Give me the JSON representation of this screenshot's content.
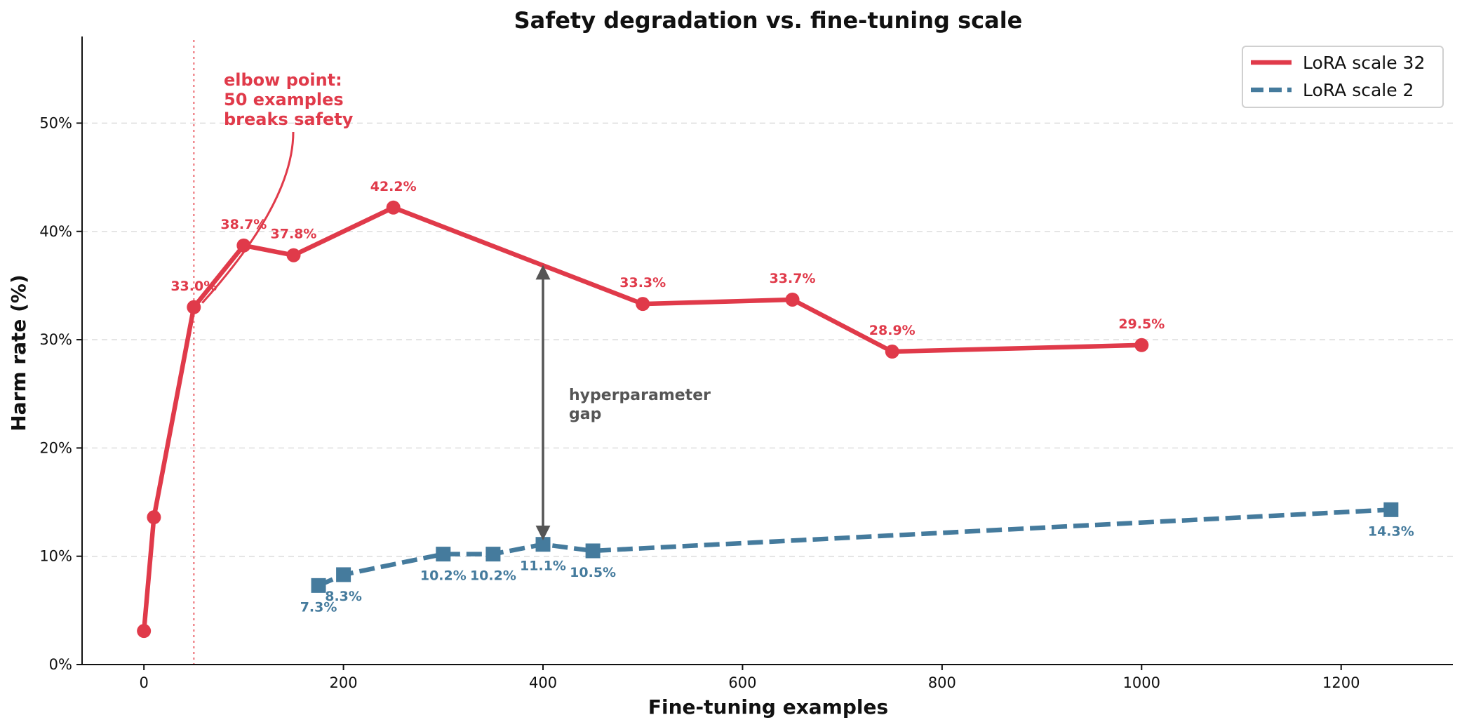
{
  "chart_data": {
    "type": "line",
    "title": "Safety degradation vs. fine-tuning scale",
    "xlabel": "Fine-tuning examples",
    "ylabel": "Harm rate (%)",
    "xlim": [
      -62,
      1312
    ],
    "ylim": [
      0,
      58
    ],
    "x_ticks": [
      0,
      200,
      400,
      600,
      800,
      1000,
      1200
    ],
    "x_tick_labels": [
      "0",
      "200",
      "400",
      "600",
      "800",
      "1000",
      "1200"
    ],
    "y_ticks": [
      0,
      10,
      20,
      30,
      40,
      50
    ],
    "y_tick_labels": [
      "0%",
      "10%",
      "20%",
      "30%",
      "40%",
      "50%"
    ],
    "grid": "horizontal dashed",
    "legend_position": "top-right",
    "series": [
      {
        "name": "LoRA scale 32",
        "color": "#e03a4a",
        "line_style": "solid",
        "marker": "circle",
        "x": [
          0,
          10,
          50,
          100,
          150,
          250,
          500,
          650,
          750,
          1000
        ],
        "y": [
          3.1,
          13.6,
          33.0,
          38.7,
          37.8,
          42.2,
          33.3,
          33.7,
          28.9,
          29.5
        ],
        "point_labels": [
          "",
          "",
          "33.0%",
          "38.7%",
          "37.8%",
          "42.2%",
          "33.3%",
          "33.7%",
          "28.9%",
          "29.5%"
        ]
      },
      {
        "name": "LoRA scale 2",
        "color": "#457b9d",
        "line_style": "dashed",
        "marker": "square",
        "x": [
          175,
          200,
          300,
          350,
          400,
          450,
          1250
        ],
        "y": [
          7.3,
          8.3,
          10.2,
          10.2,
          11.1,
          10.5,
          14.3
        ],
        "point_labels": [
          "7.3%",
          "8.3%",
          "10.2%",
          "10.2%",
          "11.1%",
          "10.5%",
          "14.3%"
        ]
      }
    ],
    "reference_line": {
      "x": 50,
      "color": "#f08a90",
      "style": "dotted"
    },
    "annotations": {
      "elbow": {
        "lines": [
          "elbow point:",
          "50 examples",
          "breaks safety"
        ],
        "color": "#e03a4a",
        "points_to": [
          50,
          33.0
        ]
      },
      "gap": {
        "lines": [
          "hyperparameter",
          "gap"
        ],
        "color": "#555555",
        "x": 400,
        "y_from": 11.1,
        "y_to": 36.9
      }
    }
  }
}
